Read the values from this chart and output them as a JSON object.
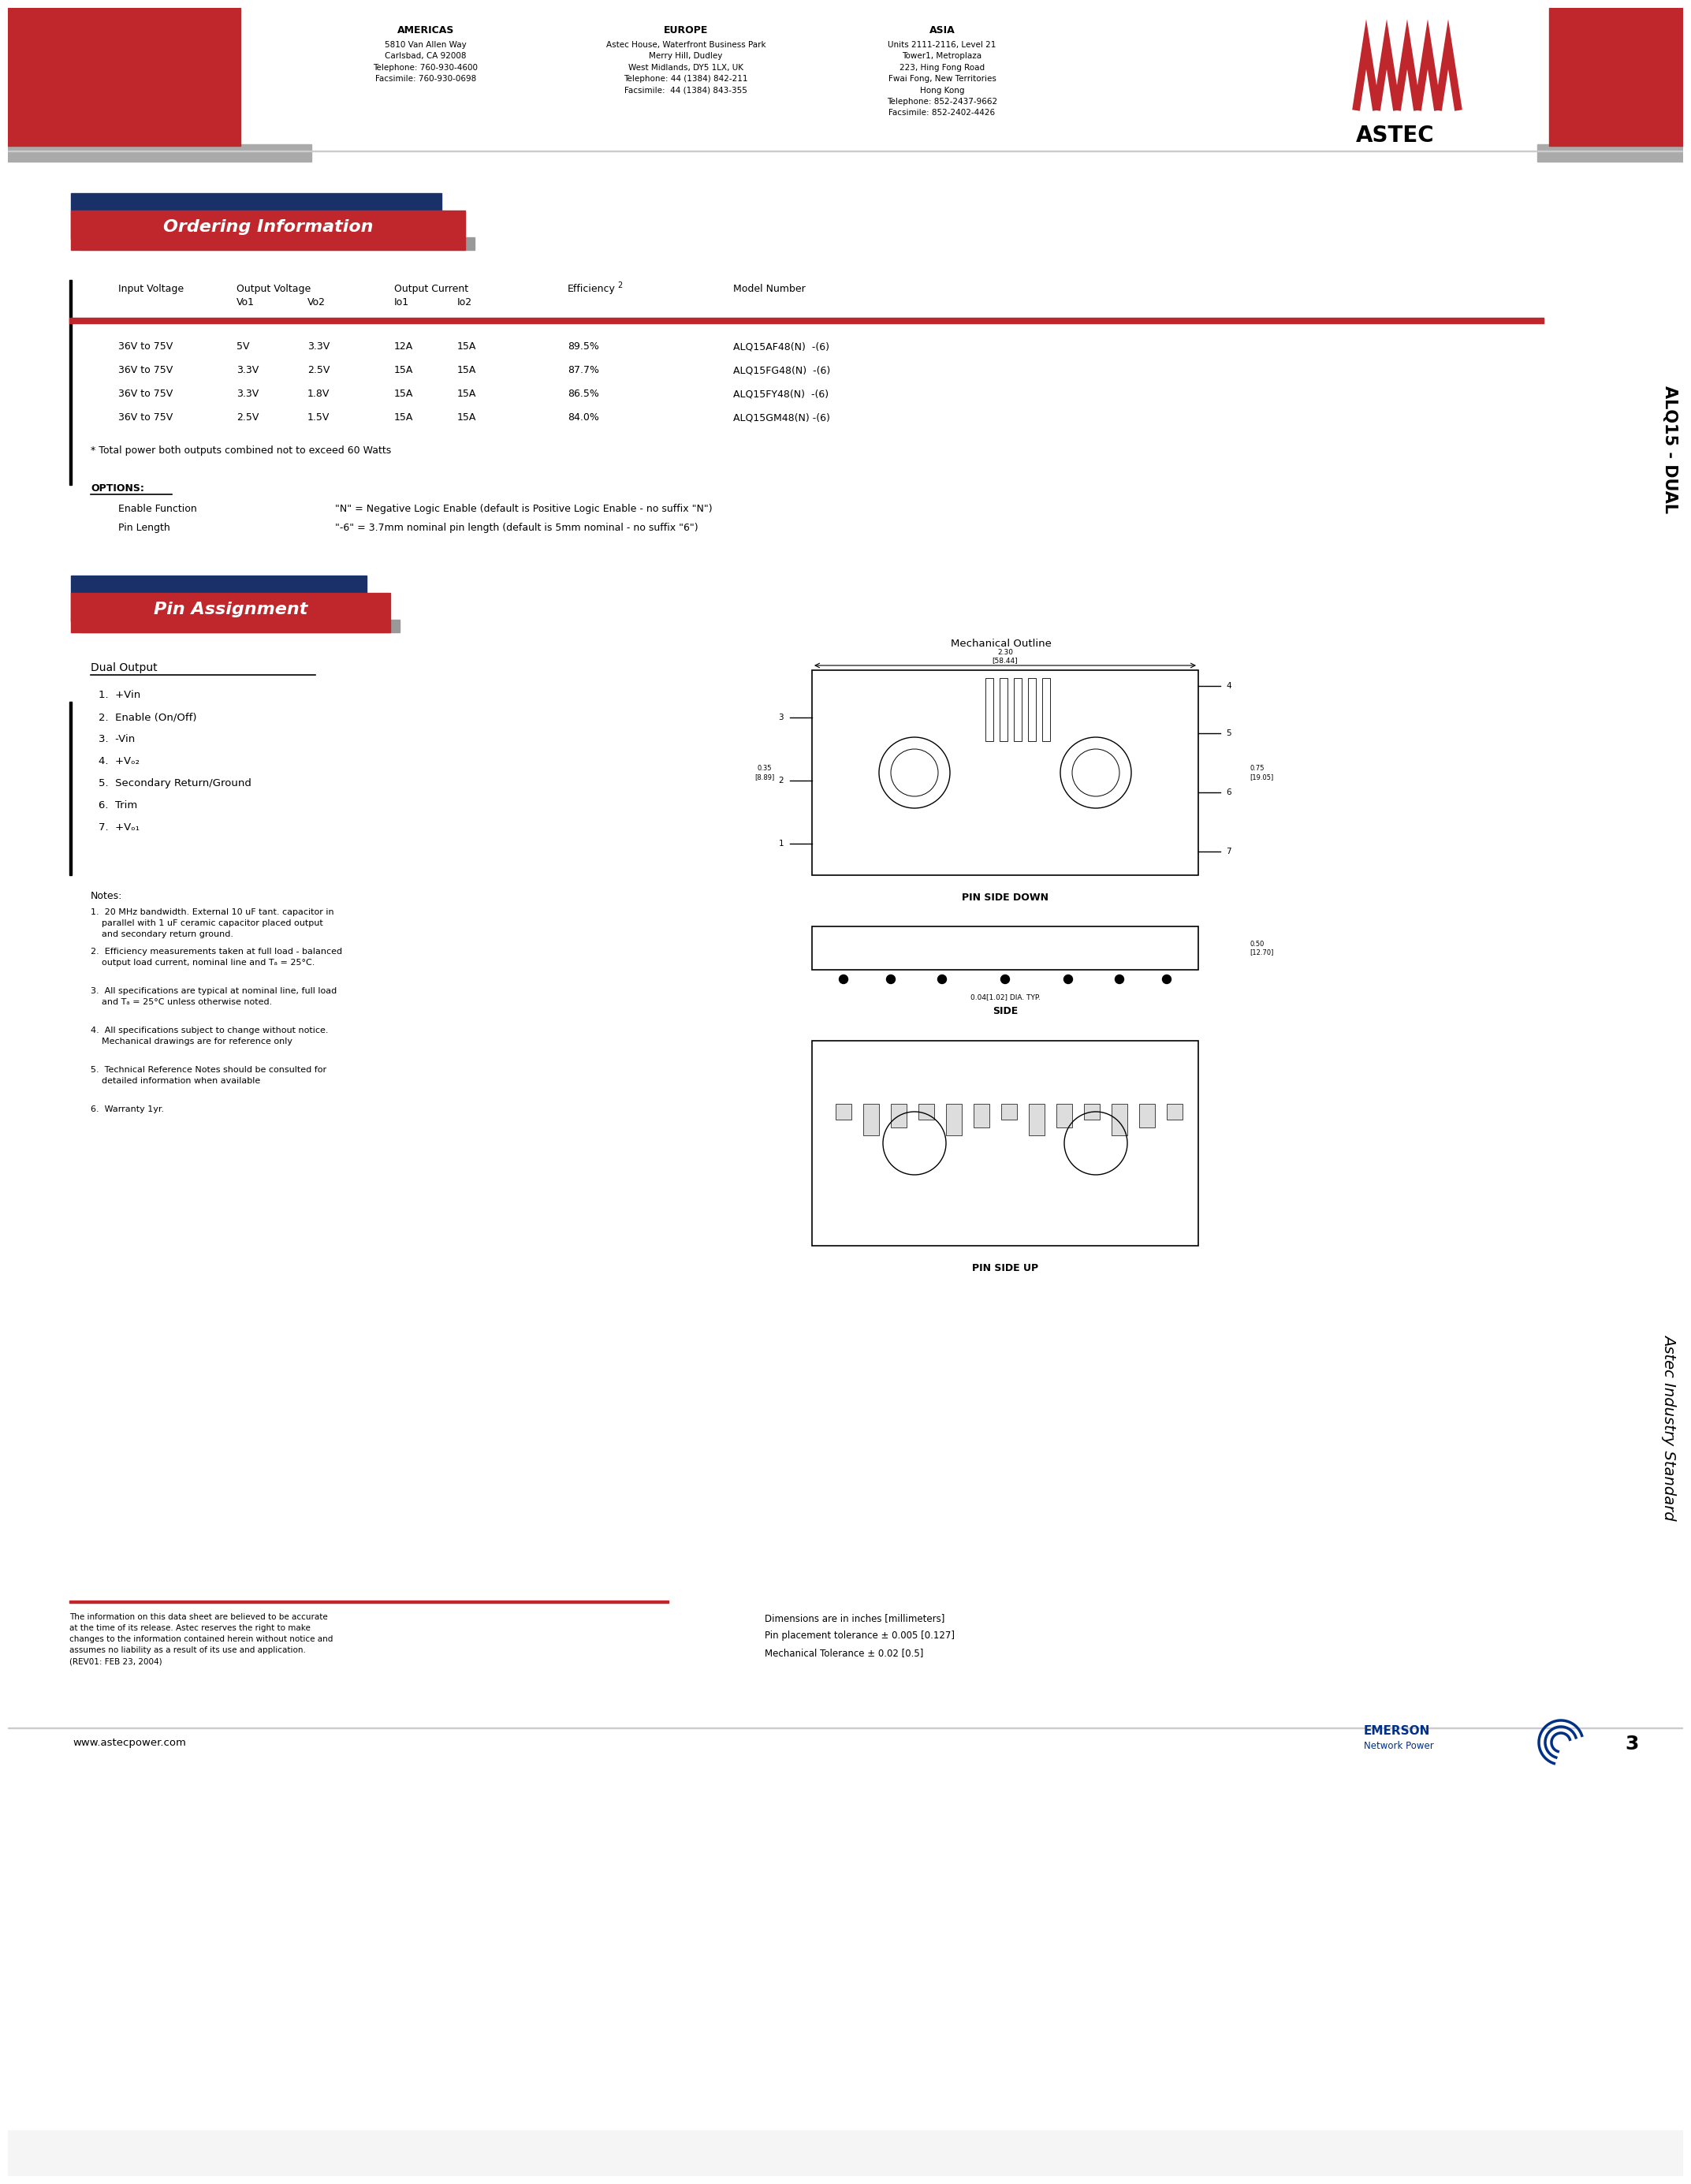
{
  "bg_color": "#ffffff",
  "red_color": "#c0272d",
  "dark_blue": "#1a3068",
  "gray_color": "#888888",
  "black": "#000000",
  "header_americas": "AMERICAS",
  "header_europe": "EUROPE",
  "header_asia": "ASIA",
  "americas_lines": [
    "5810 Van Allen Way",
    "Carlsbad, CA 92008",
    "Telephone: 760-930-4600",
    "Facsimile: 760-930-0698"
  ],
  "europe_lines": [
    "Astec House, Waterfront Business Park",
    "Merry Hill, Dudley",
    "West Midlands, DY5 1LX, UK",
    "Telephone: 44 (1384) 842-211",
    "Facsimile:  44 (1384) 843-355"
  ],
  "asia_lines": [
    "Units 2111-2116, Level 21",
    "Tower1, Metroplaza",
    "223, Hing Fong Road",
    "Fwai Fong, New Territories",
    "Hong Kong",
    "Telephone: 852-2437-9662",
    "Facsimile: 852-2402-4426"
  ],
  "section1_title": "Ordering Information",
  "table_rows": [
    [
      "36V to 75V",
      "5V",
      "3.3V",
      "12A",
      "15A",
      "89.5%",
      "ALQ15AF48(N)  -(6)"
    ],
    [
      "36V to 75V",
      "3.3V",
      "2.5V",
      "15A",
      "15A",
      "87.7%",
      "ALQ15FG48(N)  -(6)"
    ],
    [
      "36V to 75V",
      "3.3V",
      "1.8V",
      "15A",
      "15A",
      "86.5%",
      "ALQ15FY48(N)  -(6)"
    ],
    [
      "36V to 75V",
      "2.5V",
      "1.5V",
      "15A",
      "15A",
      "84.0%",
      "ALQ15GM48(N) -(6)"
    ]
  ],
  "footnote1": "* Total power both outputs combined not to exceed 60 Watts",
  "options_title": "OPTIONS:",
  "option1_label": "Enable Function",
  "option1_text": "\"N\" = Negative Logic Enable (default is Positive Logic Enable - no suffix \"N\")",
  "option2_label": "Pin Length",
  "option2_text": "\"-6\" = 3.7mm nominal pin length (default is 5mm nominal - no suffix \"6\")",
  "section2_title": "Pin Assignment",
  "dual_output_title": "Dual Output",
  "pin_list": [
    "1.  +Vin",
    "2.  Enable (On/Off)",
    "3.  -Vin",
    "4.  +Vₒ₂",
    "5.  Secondary Return/Ground",
    "6.  Trim",
    "7.  +Vₒ₁"
  ],
  "notes_title": "Notes:",
  "notes": [
    "1.  20 MHz bandwidth. External 10 uF tant. capacitor in\n    parallel with 1 uF ceramic capacitor placed output\n    and secondary return ground.",
    "2.  Efficiency measurements taken at full load - balanced\n    output load current, nominal line and Tₐ = 25°C.",
    "3.  All specifications are typical at nominal line, full load\n    and Tₐ = 25°C unless otherwise noted.",
    "4.  All specifications subject to change without notice.\n    Mechanical drawings are for reference only",
    "5.  Technical Reference Notes should be consulted for\n    detailed information when available",
    "6.  Warranty 1yr."
  ],
  "mech_outline_title": "Mechanical Outline",
  "pin_side_down": "PIN SIDE DOWN",
  "side_label": "SIDE",
  "pin_side_up": "PIN SIDE UP",
  "disclaimer": "The information on this data sheet are believed to be accurate\nat the time of its release. Astec reserves the right to make\nchanges to the information contained herein without notice and\nassumes no liability as a result of its use and application.\n(REV01: FEB 23, 2004)",
  "dim_notes": [
    "Dimensions are in inches [millimeters]",
    "Pin placement tolerance ± 0.005 [0.127]",
    "Mechanical Tolerance ± 0.02 [0.5]"
  ],
  "website": "www.astecpower.com",
  "page_num": "3",
  "side_text_top": "ALQ15 - DUAL",
  "side_text_bottom": "Astec Industry Standard",
  "emerson_label": "EMERSON",
  "emerson_sub": "Network Power"
}
